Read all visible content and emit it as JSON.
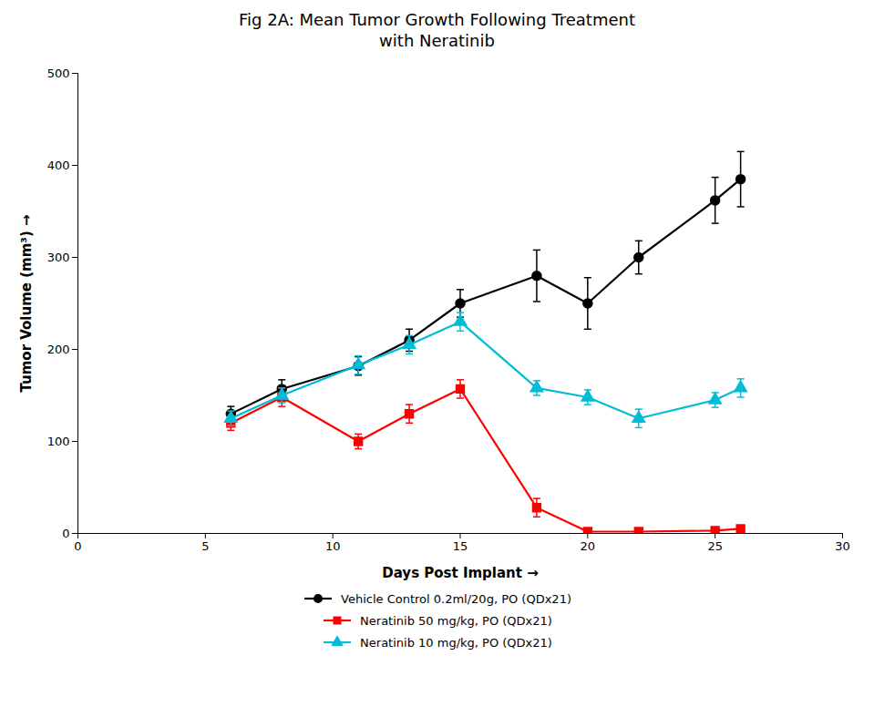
{
  "chart_data": {
    "type": "line",
    "title": "Fig 2A: Mean Tumor Growth Following Treatment\nwith Neratinib",
    "xlabel": "Days Post Implant",
    "ylabel": "Tumor Volume (mm³)",
    "xlim": [
      0,
      30
    ],
    "ylim": [
      0,
      500
    ],
    "xticks": [
      0,
      5,
      10,
      15,
      20,
      25,
      30
    ],
    "yticks": [
      0,
      100,
      200,
      300,
      400,
      500
    ],
    "grid": false,
    "legend": "bottom",
    "x": [
      6,
      8,
      11,
      13,
      15,
      18,
      20,
      22,
      25,
      26
    ],
    "series": [
      {
        "name": "Vehicle Control 0.2ml/20g, PO (QDx21)",
        "color": "#000000",
        "marker": "circle",
        "values": [
          130,
          157,
          182,
          210,
          250,
          280,
          250,
          300,
          362,
          385
        ],
        "yerr": [
          8,
          10,
          10,
          12,
          15,
          28,
          28,
          18,
          25,
          30
        ]
      },
      {
        "name": "Neratinib 50 mg/kg, PO (QDx21)",
        "color": "#ff0000",
        "marker": "square",
        "values": [
          120,
          148,
          100,
          130,
          157,
          28,
          2,
          2,
          3,
          5
        ],
        "yerr": [
          8,
          10,
          8,
          10,
          10,
          10,
          2,
          2,
          2,
          2
        ]
      },
      {
        "name": "Neratinib 10 mg/kg, PO (QDx21)",
        "color": "#00bcd4",
        "marker": "triangle",
        "values": [
          125,
          150,
          183,
          205,
          230,
          158,
          148,
          125,
          145,
          158
        ],
        "yerr": [
          8,
          8,
          10,
          10,
          10,
          8,
          8,
          10,
          8,
          10
        ]
      }
    ]
  }
}
